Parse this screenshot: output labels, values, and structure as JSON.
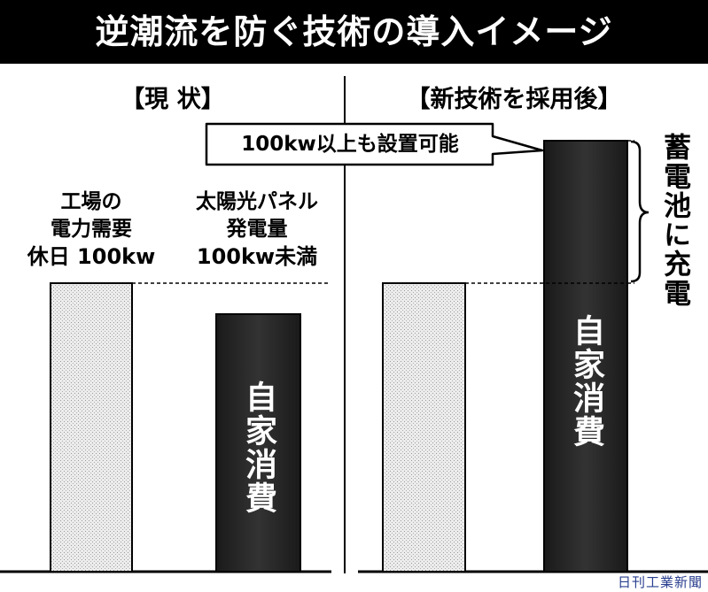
{
  "title": "逆潮流を防ぐ技術の導入イメージ",
  "panels": {
    "current": {
      "heading": "【現 状】",
      "demand_label": [
        "工場の",
        "電力需要",
        "休日 100kw"
      ],
      "solar_label": [
        "太陽光パネル",
        "発電量",
        "100kw未満"
      ],
      "bar_text": "自家消費"
    },
    "new": {
      "heading": "【新技術を採用後】",
      "callout": "100kw以上も設置可能",
      "bar_text": "自家消費",
      "bracket_text": "蓄電池に充電"
    }
  },
  "credit": "日刊工業新聞",
  "colors": {
    "title_bg": "#000000",
    "demand_bar": "#e6e6e6",
    "solar_bar": "#2b2b2b"
  }
}
